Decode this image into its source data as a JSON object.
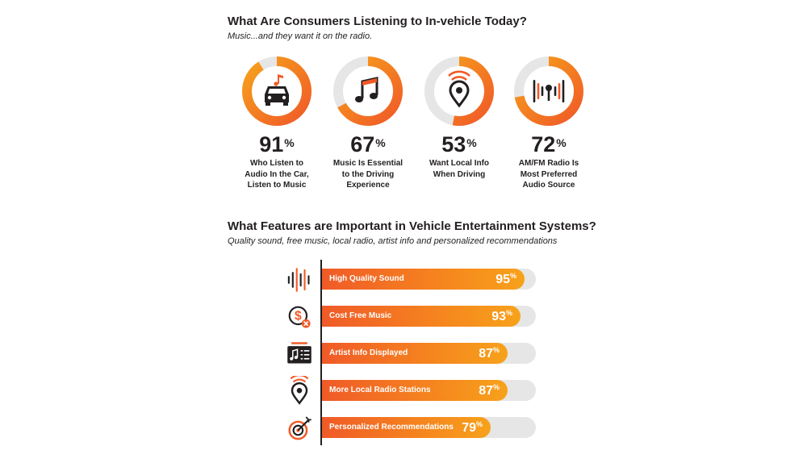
{
  "section1": {
    "title": "What Are Consumers Listening to In-vehicle Today?",
    "subtitle": "Music...and they want it on the radio."
  },
  "section2": {
    "title": "What Features are Important in Vehicle Entertainment Systems?",
    "subtitle": "Quality sound, free music, local radio, artist info and personalized recommendations"
  },
  "percent_sign": "%",
  "colors": {
    "accent_orange": "#f05a28",
    "accent_amber": "#f7a21b",
    "track_gray": "#e6e6e6",
    "text_dark": "#231f20"
  },
  "chart_data": [
    {
      "type": "pie",
      "categories": [
        "Who Listen to Audio In the Car, Listen to Music",
        "Music Is Essential to the Driving Experience",
        "Want Local Info When Driving",
        "AM/FM Radio Is Most Preferred Audio Source"
      ],
      "values": [
        91,
        67,
        53,
        72
      ],
      "value_labels": [
        "91",
        "67",
        "53",
        "72"
      ],
      "captions": [
        "Who Listen to\nAudio In the Car,\nListen to Music",
        "Music Is Essential\nto the Driving\nExperience",
        "Want Local Info\nWhen Driving",
        "AM/FM Radio Is\nMost Preferred\nAudio Source"
      ],
      "icons": [
        "car-music-icon",
        "music-note-icon",
        "location-signal-icon",
        "radio-waves-icon"
      ],
      "unit": "%",
      "max": 100
    },
    {
      "type": "bar",
      "orientation": "horizontal",
      "categories": [
        "High Quality Sound",
        "Cost Free Music",
        "Artist Info Displayed",
        "More Local Radio Stations",
        "Personalized Recommendations"
      ],
      "values": [
        95,
        93,
        87,
        87,
        79
      ],
      "value_labels": [
        "95",
        "93",
        "87",
        "87",
        "79"
      ],
      "icons": [
        "sound-wave-icon",
        "free-dollar-icon",
        "artist-info-icon",
        "local-radio-icon",
        "target-icon"
      ],
      "unit": "%",
      "xlim": [
        0,
        100
      ]
    }
  ]
}
